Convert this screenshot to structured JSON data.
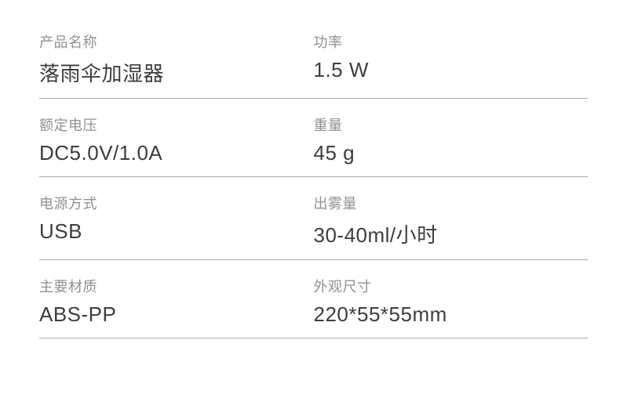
{
  "specs": {
    "rows": [
      {
        "left": {
          "label": "产品名称",
          "value": "落雨伞加湿器"
        },
        "right": {
          "label": "功率",
          "value": "1.5 W"
        }
      },
      {
        "left": {
          "label": "额定电压",
          "value": "DC5.0V/1.0A"
        },
        "right": {
          "label": "重量",
          "value": "45 g"
        }
      },
      {
        "left": {
          "label": "电源方式",
          "value": "USB"
        },
        "right": {
          "label": "出雾量",
          "value": "30-40ml/小时"
        }
      },
      {
        "left": {
          "label": "主要材质",
          "value": "ABS-PP"
        },
        "right": {
          "label": "外观尺寸",
          "value": "220*55*55mm"
        }
      }
    ],
    "style": {
      "label_color": "#919191",
      "value_color": "#3d3d3d",
      "border_color": "#ababab",
      "background_color": "#ffffff",
      "label_fontsize": 18,
      "value_fontsize": 26
    }
  }
}
